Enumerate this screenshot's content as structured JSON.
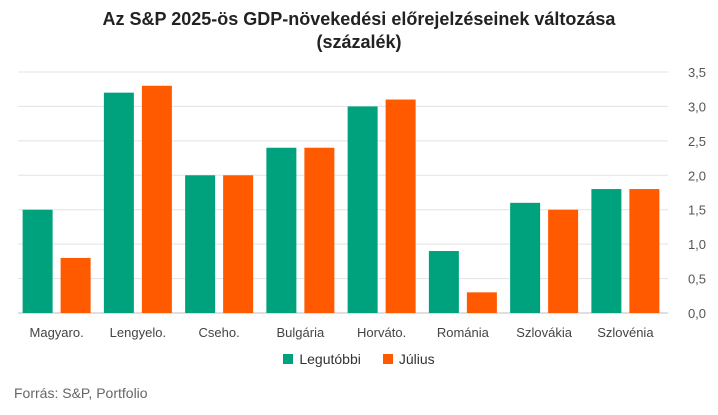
{
  "chart_data": {
    "type": "bar",
    "title_line1": "Az S&P 2025-ös GDP-növekedési előrejelzéseinek változása",
    "title_line2": "(százalék)",
    "categories": [
      "Magyaro.",
      "Lengyelo.",
      "Cseho.",
      "Bulgária",
      "Horváto.",
      "Románia",
      "Szlovákia",
      "Szlovénia"
    ],
    "series": [
      {
        "name": "Legutóbbi",
        "color": "#00a27e",
        "values": [
          1.5,
          3.2,
          2.0,
          2.4,
          3.0,
          0.9,
          1.6,
          1.8
        ]
      },
      {
        "name": "Július",
        "color": "#ff5a00",
        "values": [
          0.8,
          3.3,
          2.0,
          2.4,
          3.1,
          0.3,
          1.5,
          1.8
        ]
      }
    ],
    "yticks": [
      "0,0",
      "0,5",
      "1,0",
      "1,5",
      "2,0",
      "2,5",
      "3,0",
      "3,5"
    ],
    "ylim": [
      0,
      3.5
    ],
    "y_axis_side": "right",
    "grid": true,
    "legend_position": "bottom"
  },
  "source": "Forrás: S&P, Portfolio"
}
